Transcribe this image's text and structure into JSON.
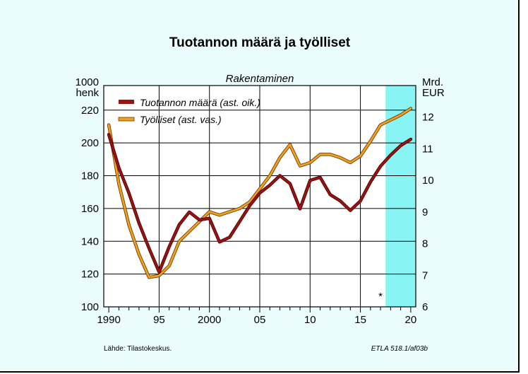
{
  "chart_data": {
    "type": "line",
    "title": "Tuotannon määrä ja työlliset",
    "subtitle": "Rakentaminen",
    "left_axis_unit": [
      "1000",
      "henk"
    ],
    "right_axis_unit": [
      "Mrd.",
      "EUR"
    ],
    "left_ticks": [
      "220",
      "200",
      "180",
      "160",
      "140",
      "120",
      "100"
    ],
    "right_ticks": [
      "12",
      "11",
      "10",
      "9",
      "8",
      "7",
      "6"
    ],
    "x_ticks": [
      "1990",
      "95",
      "2000",
      "05",
      "10",
      "15",
      "20"
    ],
    "ylim_left": [
      100,
      235
    ],
    "ylim_right": [
      6,
      13
    ],
    "xlim": [
      1989.5,
      2020.5
    ],
    "forecast_start": 2017.5,
    "forecast_marker": "*",
    "series": [
      {
        "name": "Tuotannon määrä (ast. oik.)",
        "axis": "right",
        "color": "#9b1212",
        "x": [
          1990,
          1991,
          1992,
          1993,
          1994,
          1995,
          1996,
          1997,
          1998,
          1999,
          2000,
          2001,
          2002,
          2003,
          2004,
          2005,
          2006,
          2007,
          2008,
          2009,
          2010,
          2011,
          2012,
          2013,
          2014,
          2015,
          2016,
          2017,
          2018,
          2019,
          2020
        ],
        "values": [
          11.45,
          10.4,
          9.6,
          8.65,
          7.85,
          7.1,
          7.9,
          8.6,
          9.0,
          8.75,
          8.8,
          8.05,
          8.2,
          8.7,
          9.2,
          9.6,
          9.85,
          10.15,
          9.9,
          9.1,
          10.0,
          10.1,
          9.55,
          9.35,
          9.05,
          9.35,
          9.95,
          10.45,
          10.8,
          11.1,
          11.3
        ]
      },
      {
        "name": "Työlliset (ast. vas.)",
        "axis": "left",
        "color": "#f0a01e",
        "x": [
          1990,
          1991,
          1992,
          1993,
          1994,
          1995,
          1996,
          1997,
          1998,
          1999,
          2000,
          2001,
          2002,
          2003,
          2004,
          2005,
          2006,
          2007,
          2008,
          2009,
          2010,
          2011,
          2012,
          2013,
          2014,
          2015,
          2016,
          2017,
          2018,
          2019,
          2020
        ],
        "values": [
          211,
          175,
          150,
          132,
          118,
          119,
          125,
          140,
          146,
          152,
          158,
          156,
          158,
          160,
          164,
          172,
          180,
          191,
          199,
          186,
          188,
          193,
          193,
          191,
          188,
          192,
          201,
          211,
          214,
          217,
          221
        ]
      }
    ]
  },
  "footer": {
    "source": "Lähde:   Tilastokeskus.",
    "code": "ETLA 518.1/af03b"
  },
  "colors": {
    "background": "#eafcfc",
    "forecast_band": "#88f4f4",
    "production": "#9b1212",
    "employment": "#f0a01e"
  }
}
